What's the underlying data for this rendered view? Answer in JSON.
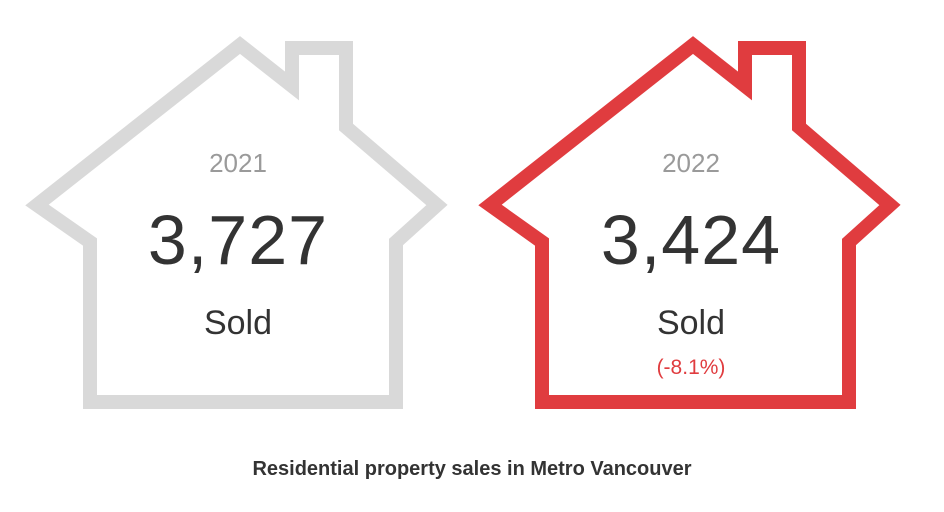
{
  "houses": [
    {
      "year": "2021",
      "count": "3,727",
      "label": "Sold",
      "outline_color": "#d9d9d9",
      "icon": "house-outline-icon"
    },
    {
      "year": "2022",
      "count": "3,424",
      "label": "Sold",
      "change": "(-8.1%)",
      "outline_color": "#e03c3f",
      "change_color": "#e03c3f",
      "icon": "house-outline-icon"
    }
  ],
  "caption": "Residential property sales in Metro Vancouver"
}
